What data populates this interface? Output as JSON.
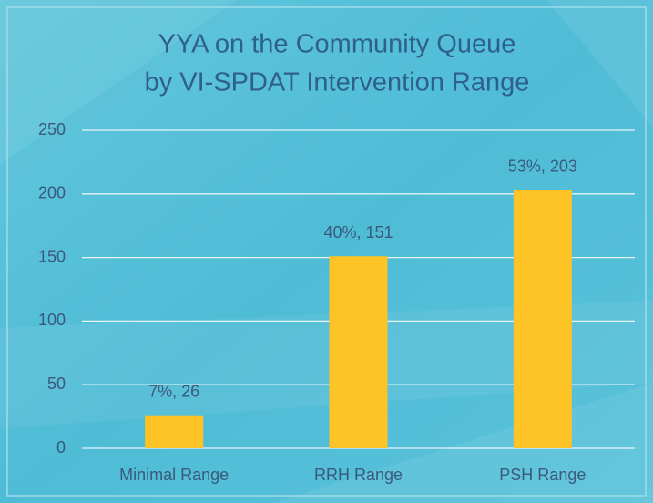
{
  "chart_data": {
    "type": "bar",
    "title": [
      "YYA on the Community Queue",
      "by VI-SPDAT Intervention Range"
    ],
    "categories": [
      "Minimal Range",
      "RRH Range",
      "PSH Range"
    ],
    "values": [
      26,
      151,
      203
    ],
    "value_labels": [
      "7%, 26",
      "40%, 151",
      "53%, 203"
    ],
    "color": "#fec325",
    "ylim": [
      0,
      250
    ],
    "yticks": [
      0,
      50,
      100,
      150,
      200,
      250
    ],
    "grid": true
  }
}
